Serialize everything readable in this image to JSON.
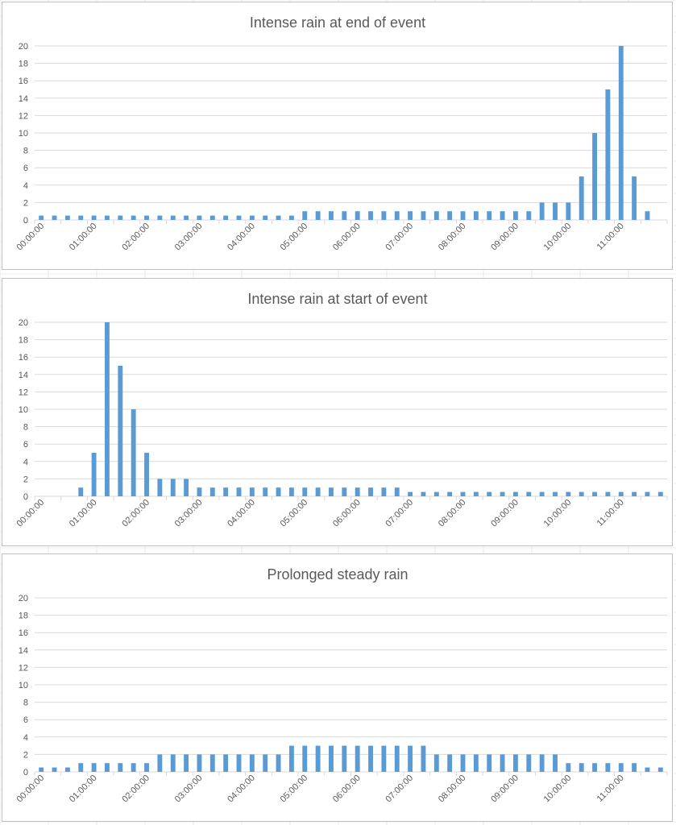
{
  "colors": {
    "bar": "#5b9bd5",
    "grid": "#d9d9d9",
    "text": "#595959",
    "border": "#bfbfbf"
  },
  "chart_data": [
    {
      "type": "bar",
      "title": "Intense rain at end of event",
      "xlabel": "",
      "ylabel": "",
      "ylim": [
        0,
        20
      ],
      "yticks": [
        "0",
        "2",
        "4",
        "6",
        "8",
        "10",
        "12",
        "14",
        "16",
        "18",
        "20"
      ],
      "grid": true,
      "x_tick_labels": [
        "00:00:00",
        "01:00:00",
        "02:00:00",
        "03:00:00",
        "04:00:00",
        "05:00:00",
        "06:00:00",
        "07:00:00",
        "08:00:00",
        "09:00:00",
        "10:00:00",
        "11:00:00"
      ],
      "values": [
        0.5,
        0.5,
        0.5,
        0.5,
        0.5,
        0.5,
        0.5,
        0.5,
        0.5,
        0.5,
        0.5,
        0.5,
        0.5,
        0.5,
        0.5,
        0.5,
        0.5,
        0.5,
        0.5,
        0.5,
        1,
        1,
        1,
        1,
        1,
        1,
        1,
        1,
        1,
        1,
        1,
        1,
        1,
        1,
        1,
        1,
        1,
        1,
        2,
        2,
        2,
        5,
        10,
        15,
        20,
        5,
        1,
        0
      ]
    },
    {
      "type": "bar",
      "title": "Intense rain at start of event",
      "xlabel": "",
      "ylabel": "",
      "ylim": [
        0,
        20
      ],
      "yticks": [
        "0",
        "2",
        "4",
        "6",
        "8",
        "10",
        "12",
        "14",
        "16",
        "18",
        "20"
      ],
      "grid": true,
      "x_tick_labels": [
        "00:00:00",
        "01:00:00",
        "02:00:00",
        "03:00:00",
        "04:00:00",
        "05:00:00",
        "06:00:00",
        "07:00:00",
        "08:00:00",
        "09:00:00",
        "10:00:00",
        "11:00:00"
      ],
      "values": [
        0,
        0,
        0,
        1,
        5,
        20,
        15,
        10,
        5,
        2,
        2,
        2,
        1,
        1,
        1,
        1,
        1,
        1,
        1,
        1,
        1,
        1,
        1,
        1,
        1,
        1,
        1,
        1,
        0.5,
        0.5,
        0.5,
        0.5,
        0.5,
        0.5,
        0.5,
        0.5,
        0.5,
        0.5,
        0.5,
        0.5,
        0.5,
        0.5,
        0.5,
        0.5,
        0.5,
        0.5,
        0.5,
        0.5
      ]
    },
    {
      "type": "bar",
      "title": "Prolonged steady rain",
      "xlabel": "",
      "ylabel": "",
      "ylim": [
        0,
        20
      ],
      "yticks": [
        "0",
        "2",
        "4",
        "6",
        "8",
        "10",
        "12",
        "14",
        "16",
        "18",
        "20"
      ],
      "grid": true,
      "x_tick_labels": [
        "00:00:00",
        "01:00:00",
        "02:00:00",
        "03:00:00",
        "04:00:00",
        "05:00:00",
        "06:00:00",
        "07:00:00",
        "08:00:00",
        "09:00:00",
        "10:00:00",
        "11:00:00"
      ],
      "values": [
        0.5,
        0.5,
        0.5,
        1,
        1,
        1,
        1,
        1,
        1,
        2,
        2,
        2,
        2,
        2,
        2,
        2,
        2,
        2,
        2,
        3,
        3,
        3,
        3,
        3,
        3,
        3,
        3,
        3,
        3,
        3,
        2,
        2,
        2,
        2,
        2,
        2,
        2,
        2,
        2,
        2,
        1,
        1,
        1,
        1,
        1,
        1,
        0.5,
        0.5
      ]
    }
  ]
}
